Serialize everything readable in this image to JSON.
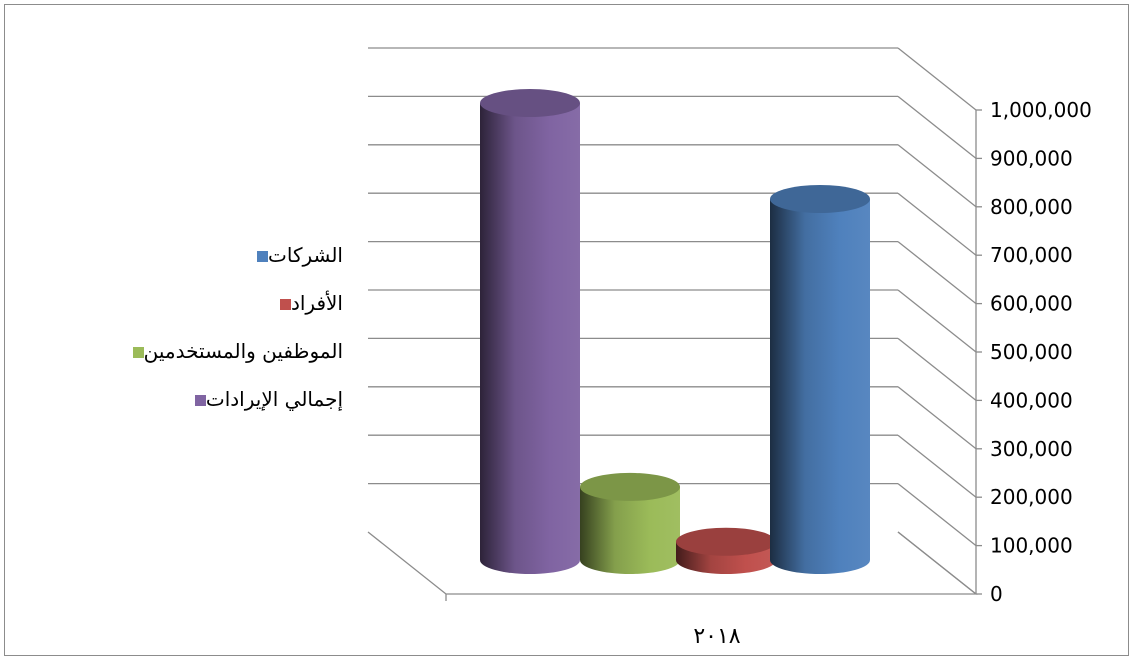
{
  "chart_data": {
    "type": "bar",
    "categories": [
      "٢٠١٨"
    ],
    "series": [
      {
        "name": "إجمالي الإيرادات",
        "values": [
          1000000
        ],
        "color": "#8064A2"
      },
      {
        "name": "الموظفين والمستخدمين",
        "values": [
          160000
        ],
        "color": "#9BBB59"
      },
      {
        "name": "الأفراد",
        "values": [
          40000
        ],
        "color": "#C0504D"
      },
      {
        "name": "الشركات",
        "values": [
          790000
        ],
        "color": "#4F81BD"
      }
    ],
    "legend_order": [
      3,
      2,
      1,
      0
    ],
    "legend_placement": "left",
    "ylim": [
      0,
      1000000
    ],
    "yticks": [
      "0",
      "100,000",
      "200,000",
      "300,000",
      "400,000",
      "500,000",
      "600,000",
      "700,000",
      "800,000",
      "900,000",
      "1,000,000"
    ],
    "y_axis_side": "right",
    "grid": true,
    "style": "3d-cylinder",
    "title": "",
    "xlabel": "",
    "ylabel": ""
  }
}
